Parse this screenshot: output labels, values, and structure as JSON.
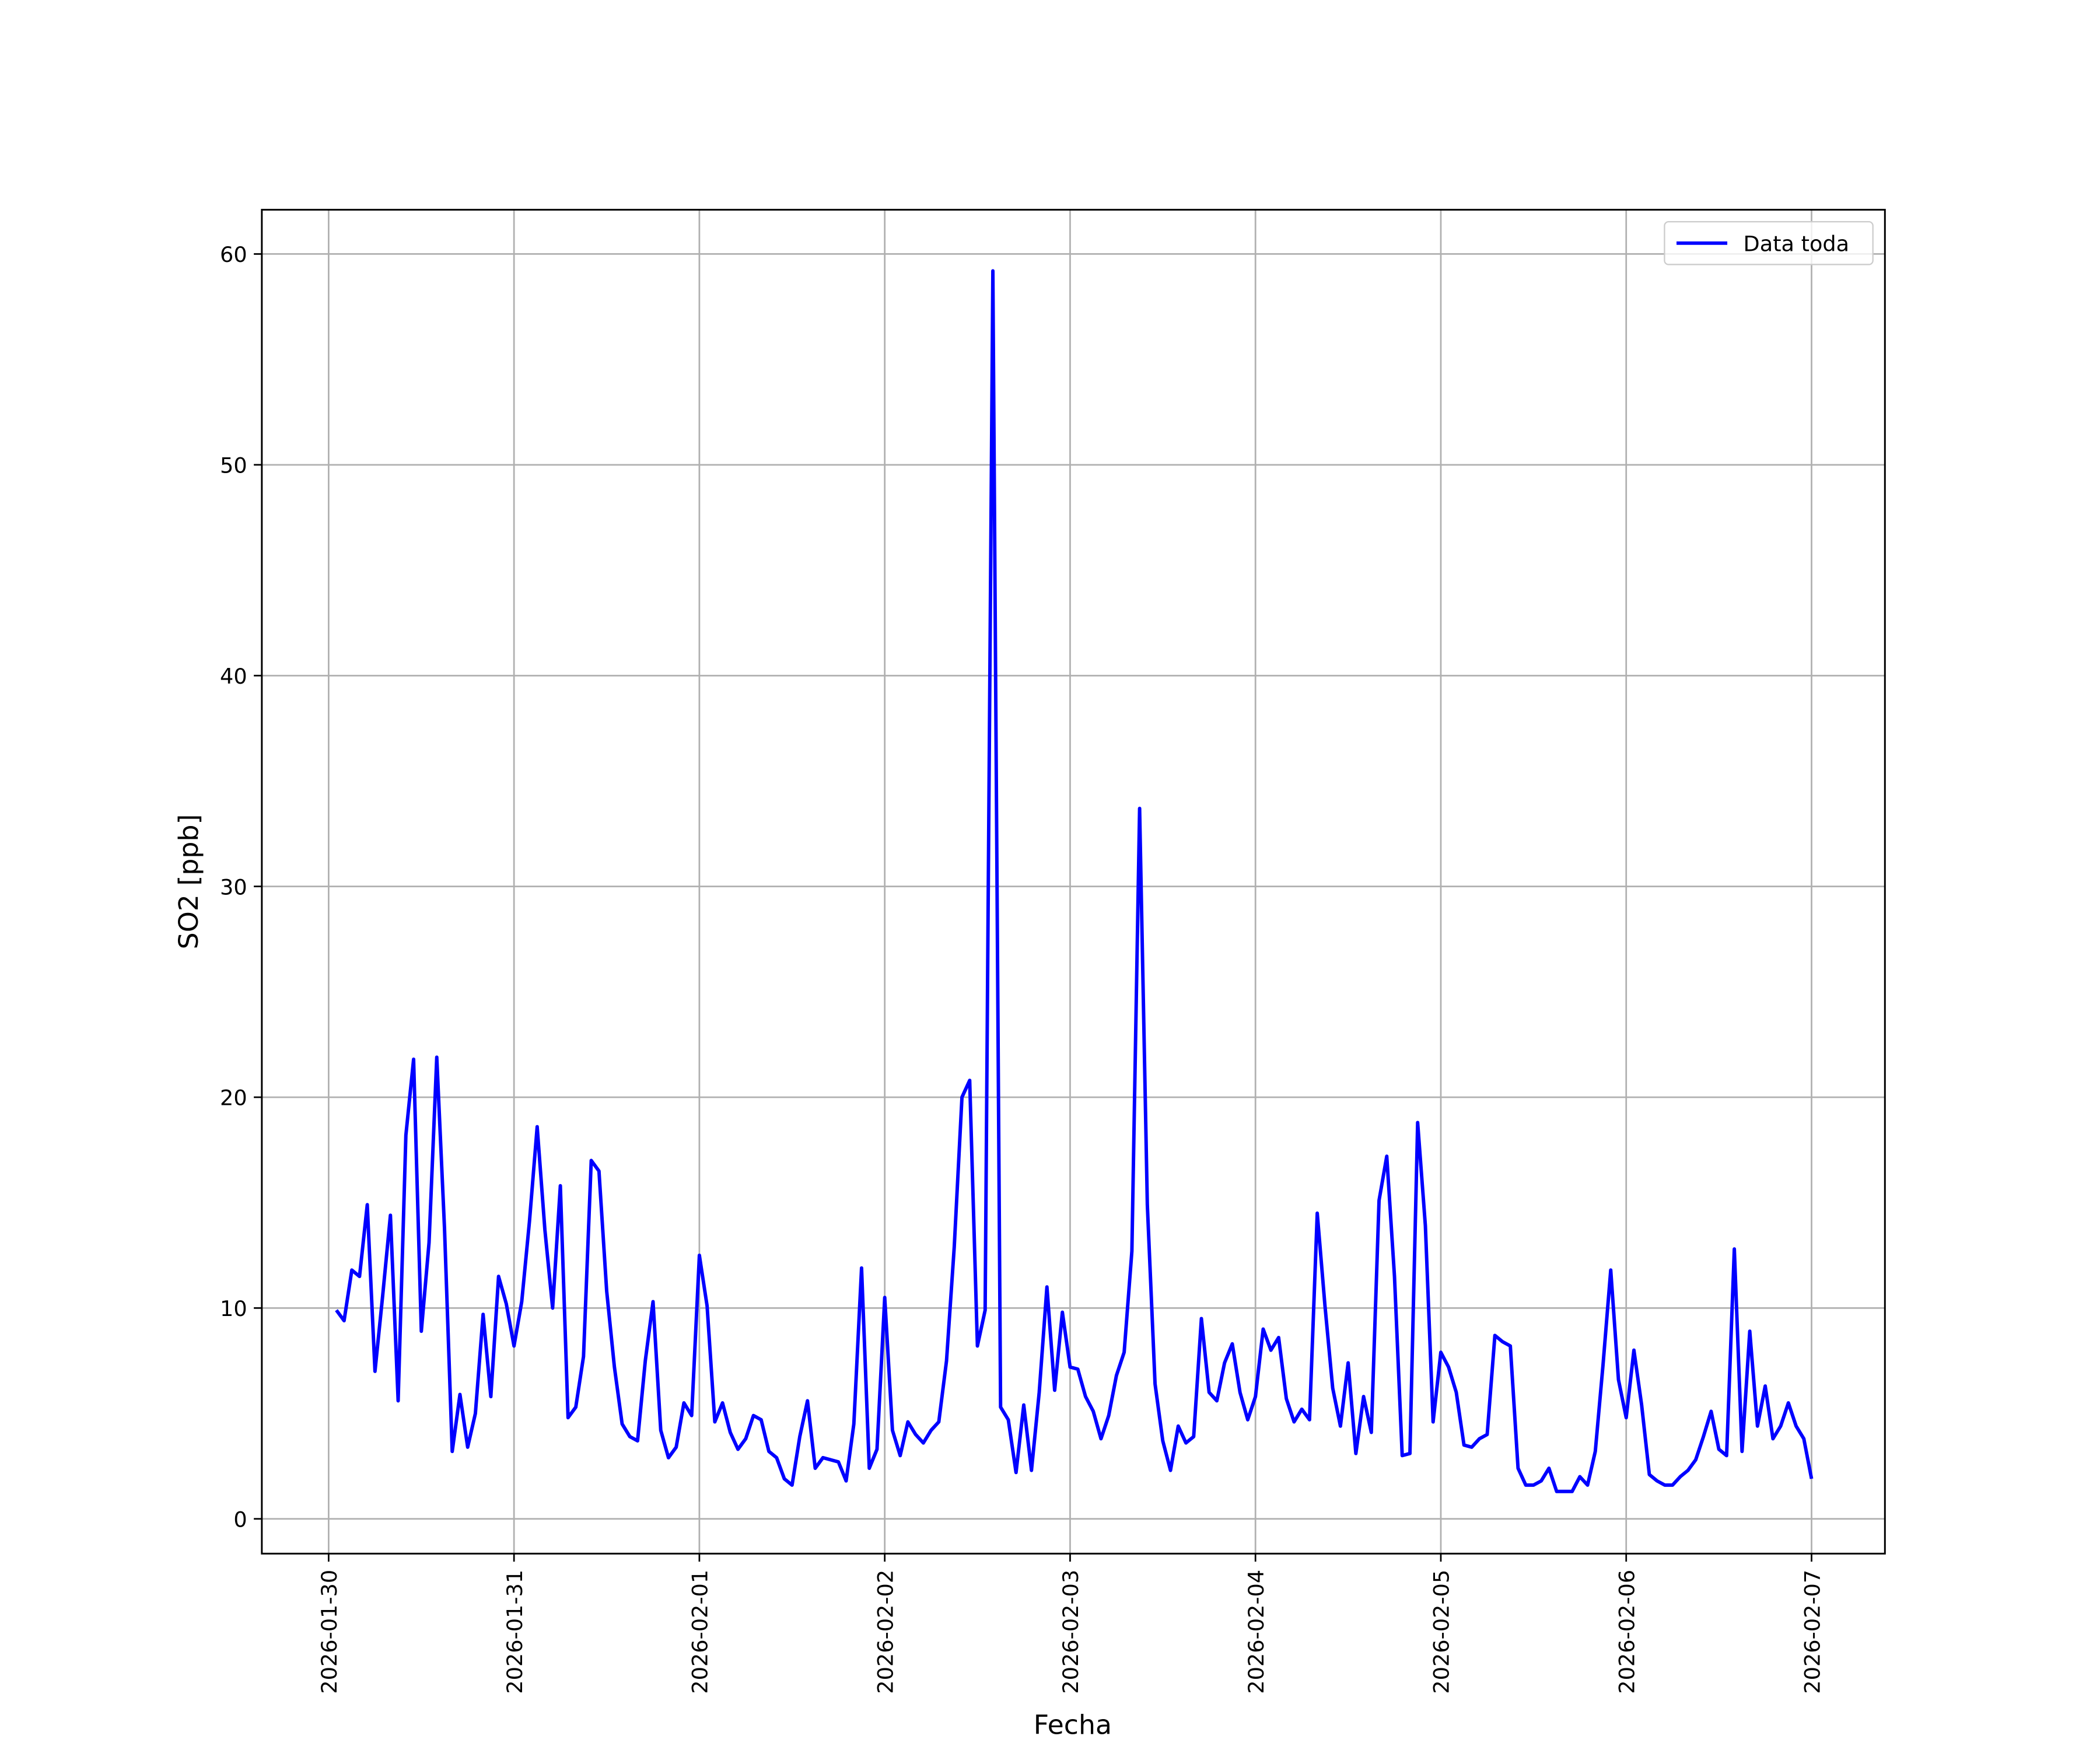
{
  "chart_data": {
    "type": "line",
    "x_label": "Fecha",
    "y_label": "SO2 [ppb]",
    "x": [
      "2026-01-30T01:00",
      "2026-01-30T02:00",
      "2026-01-30T03:00",
      "2026-01-30T04:00",
      "2026-01-30T05:00",
      "2026-01-30T06:00",
      "2026-01-30T07:00",
      "2026-01-30T08:00",
      "2026-01-30T09:00",
      "2026-01-30T10:00",
      "2026-01-30T11:00",
      "2026-01-30T12:00",
      "2026-01-30T13:00",
      "2026-01-30T14:00",
      "2026-01-30T15:00",
      "2026-01-30T16:00",
      "2026-01-30T17:00",
      "2026-01-30T18:00",
      "2026-01-30T19:00",
      "2026-01-30T20:00",
      "2026-01-30T21:00",
      "2026-01-30T22:00",
      "2026-01-30T23:00",
      "2026-01-31T00:00",
      "2026-01-31T01:00",
      "2026-01-31T02:00",
      "2026-01-31T03:00",
      "2026-01-31T04:00",
      "2026-01-31T05:00",
      "2026-01-31T06:00",
      "2026-01-31T07:00",
      "2026-01-31T08:00",
      "2026-01-31T09:00",
      "2026-01-31T10:00",
      "2026-01-31T11:00",
      "2026-01-31T12:00",
      "2026-01-31T13:00",
      "2026-01-31T14:00",
      "2026-01-31T15:00",
      "2026-01-31T16:00",
      "2026-01-31T17:00",
      "2026-01-31T18:00",
      "2026-01-31T19:00",
      "2026-01-31T20:00",
      "2026-01-31T21:00",
      "2026-01-31T22:00",
      "2026-01-31T23:00",
      "2026-02-01T00:00",
      "2026-02-01T01:00",
      "2026-02-01T02:00",
      "2026-02-01T03:00",
      "2026-02-01T04:00",
      "2026-02-01T05:00",
      "2026-02-01T06:00",
      "2026-02-01T07:00",
      "2026-02-01T08:00",
      "2026-02-01T09:00",
      "2026-02-01T10:00",
      "2026-02-01T11:00",
      "2026-02-01T12:00",
      "2026-02-01T13:00",
      "2026-02-01T14:00",
      "2026-02-01T15:00",
      "2026-02-01T16:00",
      "2026-02-01T17:00",
      "2026-02-01T18:00",
      "2026-02-01T19:00",
      "2026-02-01T20:00",
      "2026-02-01T21:00",
      "2026-02-01T22:00",
      "2026-02-01T23:00",
      "2026-02-02T00:00",
      "2026-02-02T01:00",
      "2026-02-02T02:00",
      "2026-02-02T03:00",
      "2026-02-02T04:00",
      "2026-02-02T05:00",
      "2026-02-02T06:00",
      "2026-02-02T07:00",
      "2026-02-02T08:00",
      "2026-02-02T09:00",
      "2026-02-02T10:00",
      "2026-02-02T11:00",
      "2026-02-02T12:00",
      "2026-02-02T13:00",
      "2026-02-02T14:00",
      "2026-02-02T15:00",
      "2026-02-02T16:00",
      "2026-02-02T17:00",
      "2026-02-02T18:00",
      "2026-02-02T19:00",
      "2026-02-02T20:00",
      "2026-02-02T21:00",
      "2026-02-02T22:00",
      "2026-02-02T23:00",
      "2026-02-03T00:00",
      "2026-02-03T01:00",
      "2026-02-03T02:00",
      "2026-02-03T03:00",
      "2026-02-03T04:00",
      "2026-02-03T05:00",
      "2026-02-03T06:00",
      "2026-02-03T07:00",
      "2026-02-03T08:00",
      "2026-02-03T09:00",
      "2026-02-03T10:00",
      "2026-02-03T11:00",
      "2026-02-03T12:00",
      "2026-02-03T13:00",
      "2026-02-03T14:00",
      "2026-02-03T15:00",
      "2026-02-03T16:00",
      "2026-02-03T17:00",
      "2026-02-03T18:00",
      "2026-02-03T19:00",
      "2026-02-03T20:00",
      "2026-02-03T21:00",
      "2026-02-03T22:00",
      "2026-02-03T23:00",
      "2026-02-04T00:00",
      "2026-02-04T01:00",
      "2026-02-04T02:00",
      "2026-02-04T03:00",
      "2026-02-04T04:00",
      "2026-02-04T05:00",
      "2026-02-04T06:00",
      "2026-02-04T07:00",
      "2026-02-04T08:00",
      "2026-02-04T09:00",
      "2026-02-04T10:00",
      "2026-02-04T11:00",
      "2026-02-04T12:00",
      "2026-02-04T13:00",
      "2026-02-04T14:00",
      "2026-02-04T15:00",
      "2026-02-04T16:00",
      "2026-02-04T17:00",
      "2026-02-04T18:00",
      "2026-02-04T19:00",
      "2026-02-04T20:00",
      "2026-02-04T21:00",
      "2026-02-04T22:00",
      "2026-02-04T23:00",
      "2026-02-05T00:00",
      "2026-02-05T01:00",
      "2026-02-05T02:00",
      "2026-02-05T03:00",
      "2026-02-05T04:00",
      "2026-02-05T05:00",
      "2026-02-05T06:00",
      "2026-02-05T07:00",
      "2026-02-05T08:00",
      "2026-02-05T09:00",
      "2026-02-05T10:00",
      "2026-02-05T11:00",
      "2026-02-05T12:00",
      "2026-02-05T13:00",
      "2026-02-05T14:00",
      "2026-02-05T15:00",
      "2026-02-05T16:00",
      "2026-02-05T17:00",
      "2026-02-05T18:00",
      "2026-02-05T19:00",
      "2026-02-05T20:00",
      "2026-02-05T21:00",
      "2026-02-05T22:00",
      "2026-02-05T23:00",
      "2026-02-06T00:00",
      "2026-02-06T01:00",
      "2026-02-06T02:00",
      "2026-02-06T03:00",
      "2026-02-06T04:00",
      "2026-02-06T05:00",
      "2026-02-06T06:00",
      "2026-02-06T07:00",
      "2026-02-06T08:00",
      "2026-02-06T09:00",
      "2026-02-06T10:00",
      "2026-02-06T11:00",
      "2026-02-06T12:00",
      "2026-02-06T13:00",
      "2026-02-06T14:00",
      "2026-02-06T15:00",
      "2026-02-06T16:00",
      "2026-02-06T17:00",
      "2026-02-06T18:00",
      "2026-02-06T19:00",
      "2026-02-06T20:00",
      "2026-02-06T21:00",
      "2026-02-06T22:00",
      "2026-02-06T23:00",
      "2026-02-07T00:00"
    ],
    "series": [
      {
        "name": "Data toda",
        "color": "#0000ff",
        "values": [
          9.9,
          9.4,
          11.8,
          11.5,
          14.9,
          7.0,
          10.6,
          14.4,
          5.6,
          18.2,
          21.8,
          8.9,
          13.1,
          21.9,
          13.8,
          3.2,
          5.9,
          3.4,
          5.0,
          9.7,
          5.8,
          11.5,
          10.2,
          8.2,
          10.3,
          14.1,
          18.6,
          13.7,
          10.0,
          15.8,
          4.8,
          5.3,
          7.7,
          17.0,
          16.5,
          10.8,
          7.2,
          4.5,
          3.9,
          3.7,
          7.5,
          10.3,
          4.2,
          2.9,
          3.4,
          5.5,
          4.9,
          12.5,
          10.1,
          4.6,
          5.5,
          4.1,
          3.3,
          3.8,
          4.9,
          4.7,
          3.2,
          2.9,
          1.9,
          1.6,
          3.9,
          5.6,
          2.4,
          2.9,
          2.8,
          2.7,
          1.8,
          4.5,
          11.9,
          2.4,
          3.3,
          10.5,
          4.2,
          3.0,
          4.6,
          4.0,
          3.6,
          4.2,
          4.6,
          7.5,
          12.9,
          20.0,
          20.8,
          8.2,
          9.9,
          59.2,
          5.3,
          4.7,
          2.2,
          5.4,
          2.3,
          6.0,
          11.0,
          6.1,
          9.8,
          7.2,
          7.1,
          5.8,
          5.1,
          3.8,
          4.9,
          6.8,
          7.9,
          12.7,
          33.7,
          14.9,
          6.4,
          3.7,
          2.3,
          4.4,
          3.6,
          3.9,
          9.5,
          6.0,
          5.6,
          7.4,
          8.3,
          6.0,
          4.7,
          5.8,
          9.0,
          8.0,
          8.6,
          5.7,
          4.6,
          5.2,
          4.7,
          14.5,
          10.1,
          6.2,
          4.4,
          7.4,
          3.1,
          5.8,
          4.1,
          15.1,
          17.2,
          11.5,
          3.0,
          3.1,
          18.8,
          13.9,
          4.6,
          7.9,
          7.2,
          6.0,
          3.5,
          3.4,
          3.8,
          4.0,
          8.7,
          8.4,
          8.2,
          2.4,
          1.6,
          1.6,
          1.8,
          2.4,
          1.3,
          1.3,
          1.3,
          2.0,
          1.6,
          3.2,
          7.3,
          11.8,
          6.6,
          4.8,
          8.0,
          5.4,
          2.1,
          1.8,
          1.6,
          1.6,
          2.0,
          2.3,
          2.8,
          3.9,
          5.1,
          3.3,
          3.0,
          12.8,
          3.2,
          8.9,
          4.4,
          6.3,
          3.8,
          4.4,
          5.5,
          4.4,
          3.8,
          1.9
        ]
      }
    ],
    "xlim": [
      "2026-01-29T15:21",
      "2026-02-07T09:30"
    ],
    "xticks": [
      "2026-01-30",
      "2026-01-31",
      "2026-02-01",
      "2026-02-02",
      "2026-02-03",
      "2026-02-04",
      "2026-02-05",
      "2026-02-06",
      "2026-02-07"
    ],
    "ylim": [
      -1.65,
      62.1
    ],
    "yticks": [
      0,
      10,
      20,
      30,
      40,
      50,
      60
    ],
    "grid": true,
    "legend": "upper right"
  }
}
